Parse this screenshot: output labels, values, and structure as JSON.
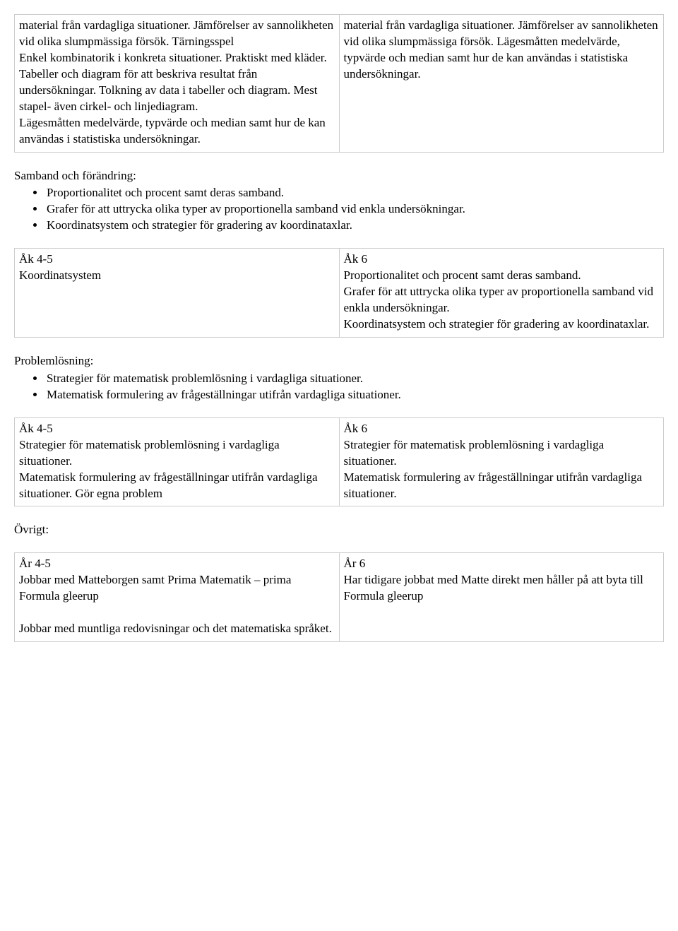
{
  "table1": {
    "left": "material från vardagliga situationer. Jämförelser av sannolikheten vid olika slumpmässiga försök. Tärningsspel\nEnkel kombinatorik i konkreta situationer. Praktiskt med kläder.\nTabeller och diagram för att beskriva resultat från undersökningar. Tolkning av data i tabeller och diagram. Mest stapel- även cirkel- och linjediagram.\nLägesmåtten medelvärde, typvärde och median samt hur de kan användas i statistiska undersökningar.",
    "right": "material från vardagliga situationer. Jämförelser av sannolikheten vid olika slumpmässiga försök. Lägesmåtten medelvärde, typvärde och median samt hur de kan användas i statistiska undersökningar."
  },
  "section1": {
    "heading": "Samband och förändring:",
    "items": [
      "Proportionalitet och procent samt deras samband.",
      "Grafer för att uttrycka olika typer av proportionella samband vid enkla undersökningar.",
      "Koordinatsystem och strategier för gradering av koordinataxlar."
    ]
  },
  "table2": {
    "left": "Åk 4-5\nKoordinatsystem",
    "right": "Åk 6\nProportionalitet och procent samt deras samband.\nGrafer för att uttrycka olika typer av proportionella samband vid enkla undersökningar.\nKoordinatsystem och strategier för gradering av koordinataxlar."
  },
  "section2": {
    "heading": "Problemlösning:",
    "items": [
      "Strategier för matematisk problemlösning i vardagliga situationer.",
      "Matematisk formulering av frågeställningar utifrån vardagliga situationer."
    ]
  },
  "table3": {
    "left": "Åk 4-5\nStrategier för matematisk problemlösning i vardagliga situationer.\nMatematisk formulering av frågeställningar utifrån vardagliga situationer. Gör egna problem",
    "right": "Åk 6\nStrategier för matematisk problemlösning i vardagliga situationer.\nMatematisk formulering av frågeställningar utifrån vardagliga situationer."
  },
  "section3": {
    "heading": "Övrigt:"
  },
  "table4": {
    "left": "År 4-5\nJobbar med Matteborgen samt Prima Matematik – prima Formula gleerup\n\nJobbar med muntliga redovisningar och det matematiska språket.",
    "right": "År 6\nHar tidigare jobbat med Matte direkt men håller på att byta till Formula gleerup"
  }
}
